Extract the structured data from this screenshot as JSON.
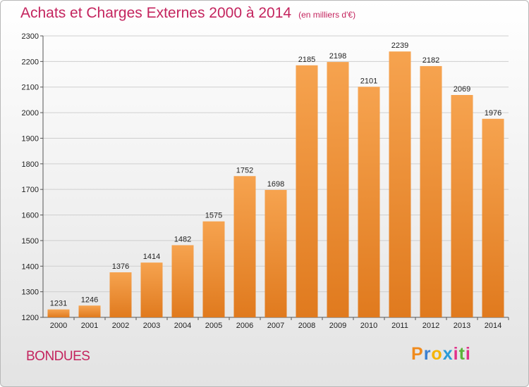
{
  "header": {
    "title": "Achats et Charges Externes 2000 à 2014",
    "subtitle": "(en milliers d'€)"
  },
  "footer": {
    "place": "BONDUES",
    "logo": [
      "P",
      "r",
      "o",
      "x",
      "i",
      "t",
      "i"
    ]
  },
  "colors": {
    "title": "#c4245e",
    "bar_top": "#f6a34f",
    "bar_bottom": "#e07a1e",
    "grid": "#cfcfcf"
  },
  "chart_data": {
    "type": "bar",
    "categories": [
      "2000",
      "2001",
      "2002",
      "2003",
      "2004",
      "2005",
      "2006",
      "2007",
      "2008",
      "2009",
      "2010",
      "2011",
      "2012",
      "2013",
      "2014"
    ],
    "values": [
      1231,
      1246,
      1376,
      1414,
      1482,
      1575,
      1752,
      1698,
      2185,
      2198,
      2101,
      2239,
      2182,
      2069,
      1976
    ],
    "title": "Achats et Charges Externes 2000 à 2014",
    "subtitle": "(en milliers d'€)",
    "ylim": [
      1200,
      2300
    ],
    "yticks": [
      1200,
      1300,
      1400,
      1500,
      1600,
      1700,
      1800,
      1900,
      2000,
      2100,
      2200,
      2300
    ],
    "grid": true,
    "data_labels": true
  }
}
